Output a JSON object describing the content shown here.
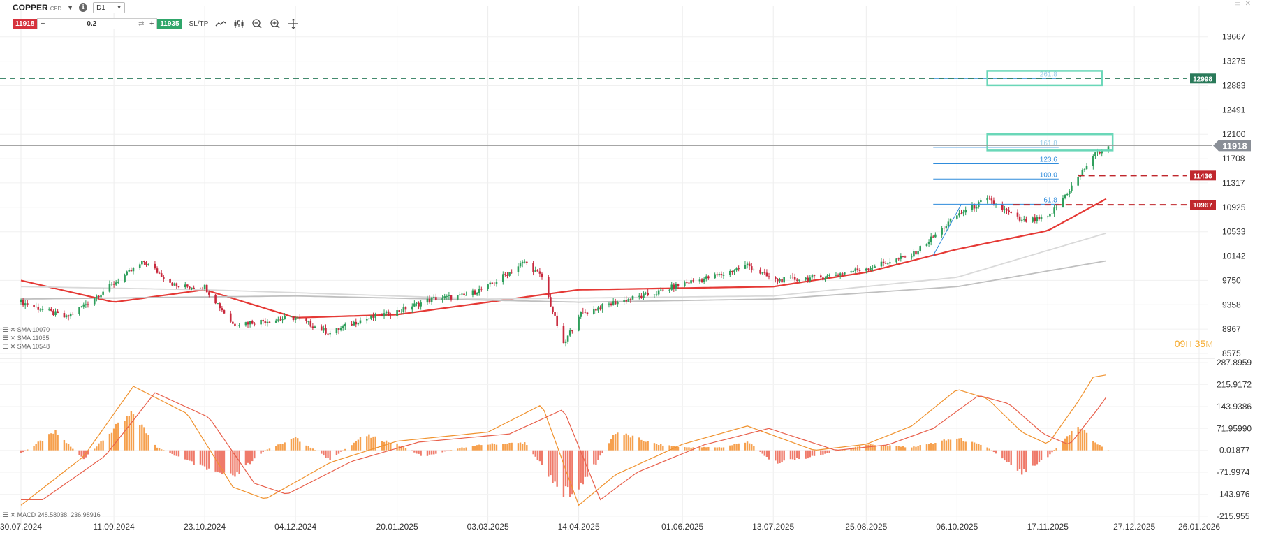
{
  "toolbar": {
    "symbol": "COPPER",
    "symbol_suffix": "CFD",
    "timeframe": "D1",
    "sell_price": "11918",
    "quantity": "0.2",
    "buy_price": "11935",
    "sltp_label": "SL/TP",
    "icons": [
      "line-chart-icon",
      "candles-icon",
      "zoom-out-icon",
      "zoom-in-icon",
      "crosshair-icon"
    ]
  },
  "legend": {
    "sma1": "SMA 10070",
    "sma2": "SMA 11055",
    "sma3": "SMA 10548",
    "macd": "MACD 248.58038, 236.98916"
  },
  "countdown": {
    "hours": "09",
    "h": "H",
    "minutes": "35",
    "m": "M"
  },
  "colors": {
    "sell": "#d6323d",
    "buy": "#2fa66a",
    "bull": "#2e9e5b",
    "bear": "#c8283c",
    "sma_red": "#e53935",
    "sma_light": "#d9d9d9",
    "sma_gray": "#bfbfbf",
    "macd_pos": "#f6a04d",
    "macd_neg": "#ef7a6a",
    "fib": "#2f8cdc",
    "box": "#6ad7b8"
  },
  "chart_data": [
    {
      "type": "candlestick",
      "symbol": "COPPER",
      "timeframe": "D1",
      "x_tick_labels": [
        "30.07.2024",
        "11.09.2024",
        "23.10.2024",
        "04.12.2024",
        "20.01.2025",
        "03.03.2025",
        "14.04.2025",
        "01.06.2025",
        "13.07.2025",
        "25.08.2025",
        "06.10.2025",
        "17.11.2025",
        "27.12.2025",
        "26.01.2026"
      ],
      "y_tick_labels": [
        "13667",
        "13275",
        "12883",
        "12491",
        "12100",
        "11708",
        "11317",
        "10925",
        "10533",
        "10142",
        "9750",
        "9358",
        "8967",
        "8575"
      ],
      "ylim": [
        8575,
        13765
      ],
      "current_price": 11918,
      "price_labels": [
        {
          "value": 12998,
          "label": "12998",
          "style": "dashed",
          "color": "#2a7a5a"
        },
        {
          "value": 11436,
          "label": "11436",
          "style": "dashed",
          "color": "#c0272d"
        },
        {
          "value": 10967,
          "label": "10967",
          "style": "dashed",
          "color": "#c0272d"
        }
      ],
      "fibonacci_labels": [
        "261.8",
        "161.8",
        "123.6",
        "100.0",
        "61.8"
      ],
      "close_anchors": [
        [
          "30.07.2024",
          9400
        ],
        [
          "20.08.2024",
          9150
        ],
        [
          "11.09.2024",
          9700
        ],
        [
          "25.09.2024",
          10050
        ],
        [
          "10.10.2024",
          9650
        ],
        [
          "23.10.2024",
          9650
        ],
        [
          "05.11.2024",
          9050
        ],
        [
          "20.11.2024",
          9100
        ],
        [
          "04.12.2024",
          9150
        ],
        [
          "20.12.2024",
          8900
        ],
        [
          "02.01.2025",
          9100
        ],
        [
          "20.01.2025",
          9250
        ],
        [
          "05.02.2025",
          9450
        ],
        [
          "20.02.2025",
          9500
        ],
        [
          "03.03.2025",
          9650
        ],
        [
          "20.03.2025",
          10050
        ],
        [
          "28.03.2025",
          9800
        ],
        [
          "07.04.2025",
          8700
        ],
        [
          "14.04.2025",
          9200
        ],
        [
          "01.05.2025",
          9400
        ],
        [
          "20.05.2025",
          9550
        ],
        [
          "01.06.2025",
          9700
        ],
        [
          "20.06.2025",
          9850
        ],
        [
          "01.07.2025",
          10000
        ],
        [
          "13.07.2025",
          9750
        ],
        [
          "05.08.2025",
          9800
        ],
        [
          "25.08.2025",
          9950
        ],
        [
          "15.09.2025",
          10150
        ],
        [
          "25.09.2025",
          10450
        ],
        [
          "06.10.2025",
          10800
        ],
        [
          "20.10.2025",
          11050
        ],
        [
          "05.11.2025",
          10700
        ],
        [
          "17.11.2025",
          10750
        ],
        [
          "01.12.2025",
          11400
        ],
        [
          "08.12.2025",
          11750
        ],
        [
          "15.12.2025",
          11918
        ]
      ],
      "sma_series": [
        {
          "name": "SMA 10548",
          "color": "#e53935",
          "anchors": [
            [
              "30.07.2024",
              9750
            ],
            [
              "11.09.2024",
              9400
            ],
            [
              "23.10.2024",
              9600
            ],
            [
              "04.12.2024",
              9150
            ],
            [
              "20.01.2025",
              9200
            ],
            [
              "03.03.2025",
              9400
            ],
            [
              "14.04.2025",
              9600
            ],
            [
              "13.07.2025",
              9650
            ],
            [
              "25.08.2025",
              9880
            ],
            [
              "06.10.2025",
              10250
            ],
            [
              "17.11.2025",
              10550
            ],
            [
              "15.12.2025",
              11080
            ]
          ]
        },
        {
          "name": "SMA 11055",
          "color": "#d9d9d9",
          "anchors": [
            [
              "30.07.2024",
              9650
            ],
            [
              "23.10.2024",
              9600
            ],
            [
              "03.03.2025",
              9450
            ],
            [
              "13.07.2025",
              9500
            ],
            [
              "06.10.2025",
              9800
            ],
            [
              "15.12.2025",
              10520
            ]
          ]
        },
        {
          "name": "SMA 10070",
          "color": "#bfbfbf",
          "anchors": [
            [
              "30.07.2024",
              9450
            ],
            [
              "04.12.2024",
              9500
            ],
            [
              "14.04.2025",
              9400
            ],
            [
              "13.07.2025",
              9450
            ],
            [
              "06.10.2025",
              9650
            ],
            [
              "15.12.2025",
              10070
            ]
          ]
        }
      ]
    },
    {
      "type": "histogram+line",
      "name": "MACD",
      "y_tick_labels": [
        "287.8959",
        "215.9172",
        "143.9386",
        "71.95990",
        "-0.01877",
        "-71.9974",
        "-143.976",
        "-215.955"
      ],
      "ylim": [
        -215.955,
        287.8959
      ],
      "histogram_anchors": [
        [
          "30.07.2024",
          -10
        ],
        [
          "15.08.2024",
          60
        ],
        [
          "28.08.2024",
          -30
        ],
        [
          "11.09.2024",
          70
        ],
        [
          "20.09.2024",
          120
        ],
        [
          "01.10.2024",
          10
        ],
        [
          "23.10.2024",
          -60
        ],
        [
          "05.11.2024",
          -90
        ],
        [
          "20.11.2024",
          0
        ],
        [
          "04.12.2024",
          40
        ],
        [
          "20.12.2024",
          -30
        ],
        [
          "05.01.2025",
          50
        ],
        [
          "20.01.2025",
          20
        ],
        [
          "01.02.2025",
          -20
        ],
        [
          "20.02.2025",
          10
        ],
        [
          "03.03.2025",
          20
        ],
        [
          "20.03.2025",
          25
        ],
        [
          "07.04.2025",
          -140
        ],
        [
          "14.04.2025",
          -130
        ],
        [
          "01.05.2025",
          60
        ],
        [
          "20.05.2025",
          20
        ],
        [
          "01.06.2025",
          10
        ],
        [
          "20.06.2025",
          10
        ],
        [
          "01.07.2025",
          30
        ],
        [
          "13.07.2025",
          -40
        ],
        [
          "01.08.2025",
          -20
        ],
        [
          "25.08.2025",
          20
        ],
        [
          "15.09.2025",
          10
        ],
        [
          "06.10.2025",
          40
        ],
        [
          "20.10.2025",
          10
        ],
        [
          "05.11.2025",
          -70
        ],
        [
          "17.11.2025",
          -20
        ],
        [
          "01.12.2025",
          80
        ],
        [
          "10.12.2025",
          20
        ],
        [
          "15.12.2025",
          0
        ]
      ],
      "macd_line": {
        "name": "MACD",
        "value": 248.58038,
        "color": "#f0922e"
      },
      "signal_line": {
        "value": 236.98916,
        "color": "#e8604c"
      }
    }
  ]
}
